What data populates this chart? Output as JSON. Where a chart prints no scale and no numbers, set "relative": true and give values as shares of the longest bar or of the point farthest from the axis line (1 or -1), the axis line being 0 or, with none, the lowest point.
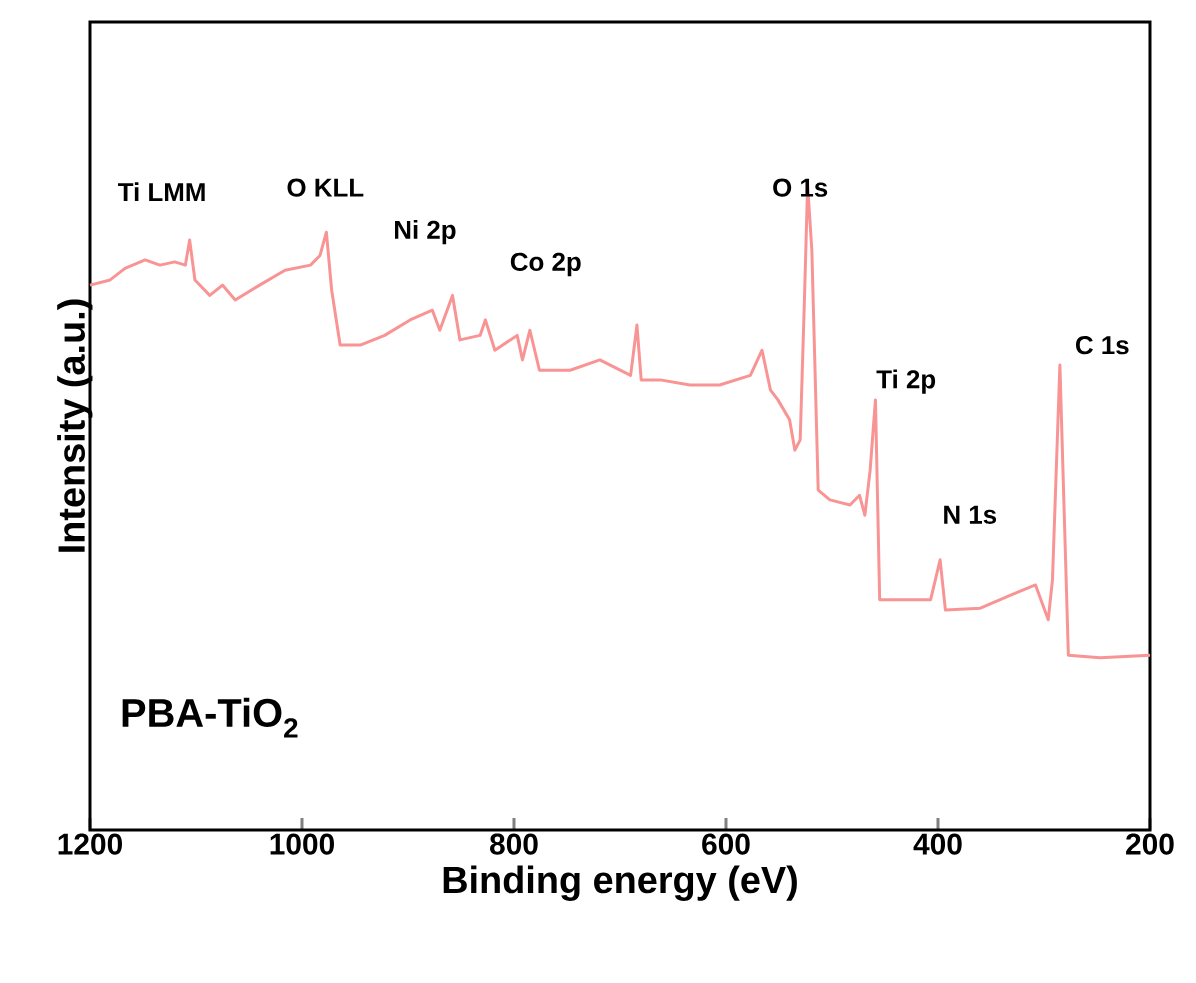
{
  "chart_data": {
    "type": "line",
    "relative": true,
    "xlabel": "Binding energy (eV)",
    "ylabel": "Intensity (a.u.)",
    "xlim": [
      1200,
      200
    ],
    "xticks": [
      1200,
      1000,
      800,
      600,
      400,
      200
    ],
    "x": [
      1200,
      1181,
      1167,
      1148,
      1134,
      1120,
      1110,
      1106,
      1101,
      1087,
      1075,
      1063,
      1040,
      1016,
      992,
      983,
      977,
      972,
      964,
      945,
      922,
      898,
      877,
      870,
      858,
      851,
      832,
      827,
      818,
      797,
      792,
      785,
      776,
      747,
      719,
      690,
      684,
      680,
      662,
      634,
      606,
      577,
      566,
      558,
      551,
      540,
      535,
      530,
      526,
      523,
      519,
      513,
      502,
      483,
      474,
      469,
      464,
      459,
      455,
      436,
      407,
      398,
      393,
      360,
      332,
      308,
      296,
      292,
      285,
      277,
      247,
      200
    ],
    "series": [
      {
        "color": "#f99494",
        "values": [
          0.845,
          0.853,
          0.871,
          0.884,
          0.876,
          0.881,
          0.876,
          0.915,
          0.853,
          0.829,
          0.845,
          0.822,
          0.845,
          0.868,
          0.876,
          0.891,
          0.927,
          0.837,
          0.752,
          0.752,
          0.767,
          0.791,
          0.806,
          0.775,
          0.829,
          0.76,
          0.767,
          0.791,
          0.744,
          0.767,
          0.729,
          0.775,
          0.713,
          0.713,
          0.729,
          0.705,
          0.783,
          0.698,
          0.698,
          0.69,
          0.69,
          0.705,
          0.744,
          0.682,
          0.667,
          0.636,
          0.589,
          0.605,
          0.822,
          1.0,
          0.899,
          0.527,
          0.512,
          0.504,
          0.519,
          0.488,
          0.558,
          0.667,
          0.357,
          0.357,
          0.357,
          0.419,
          0.341,
          0.344,
          0.364,
          0.38,
          0.326,
          0.388,
          0.721,
          0.271,
          0.267,
          0.271
        ]
      }
    ],
    "annotations": [
      "Ti LMM",
      "O KLL",
      "Ni 2p",
      "Co 2p",
      "O 1s",
      "Ti 2p",
      "N 1s",
      "C 1s",
      "PBA-TiO$_{2}$"
    ]
  }
}
